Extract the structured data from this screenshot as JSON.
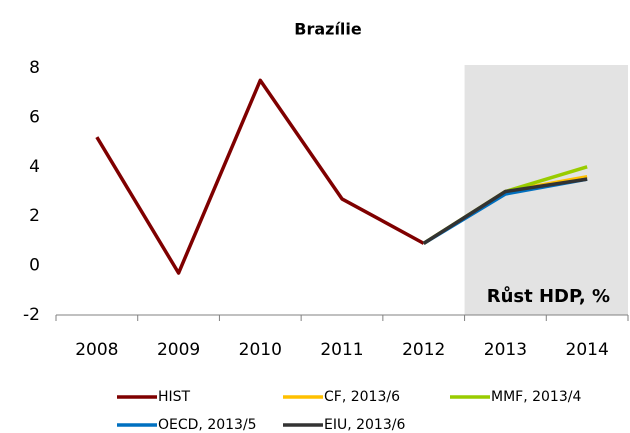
{
  "chart_data": {
    "type": "line",
    "title": "Brazílie",
    "annotation": "Růst HDP, %",
    "categories": [
      "2008",
      "2009",
      "2010",
      "2011",
      "2012",
      "2013",
      "2014"
    ],
    "series": [
      {
        "name": "HIST",
        "color": "#7f0000",
        "values": [
          5.2,
          -0.3,
          7.5,
          2.7,
          0.9,
          null,
          null
        ]
      },
      {
        "name": "CF, 2013/6",
        "color": "#ffc000",
        "values": [
          null,
          null,
          null,
          null,
          0.9,
          3.0,
          3.6
        ]
      },
      {
        "name": "MMF, 2013/4",
        "color": "#99cc00",
        "values": [
          null,
          null,
          null,
          null,
          0.9,
          3.0,
          4.0
        ]
      },
      {
        "name": "OECD, 2013/5",
        "color": "#0070c0",
        "values": [
          null,
          null,
          null,
          null,
          0.9,
          2.9,
          3.5
        ]
      },
      {
        "name": "EIU, 2013/6",
        "color": "#333333",
        "values": [
          null,
          null,
          null,
          null,
          0.9,
          3.0,
          3.5
        ]
      }
    ],
    "ylim": [
      -2,
      8
    ],
    "yticks": [
      -2,
      0,
      2,
      4,
      6,
      8
    ]
  }
}
